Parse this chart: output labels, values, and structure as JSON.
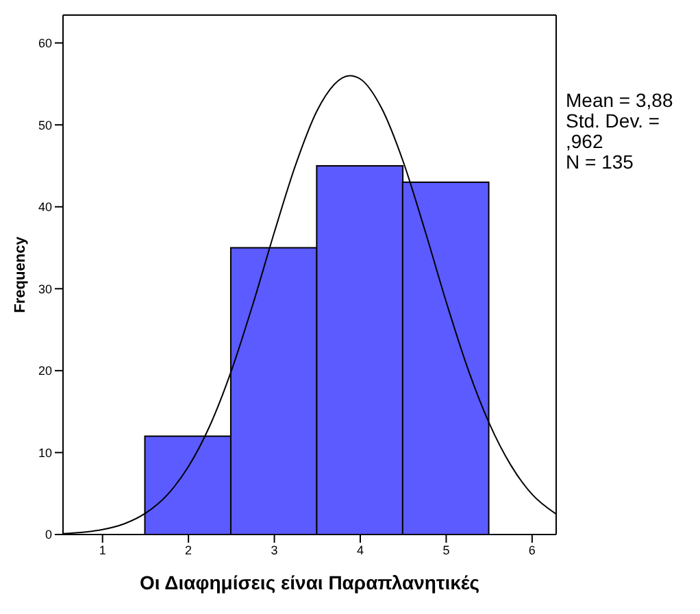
{
  "chart_data": {
    "type": "histogram",
    "xlabel": "Οι Διαφημίσεις είναι Παραπλανητικές",
    "ylabel": "Frequency",
    "annotations": [
      "Mean = 3,88",
      "Std. Dev. = ,962",
      "N = 135"
    ],
    "series": [
      {
        "bins": [
          1.5,
          2.5,
          3.5,
          4.5,
          5.5
        ],
        "values": [
          12,
          35,
          45,
          43
        ],
        "color": "#5b5bff"
      },
      {
        "type": "line",
        "color": "#000000",
        "x": [
          0.54,
          1.0,
          1.25,
          1.5,
          1.75,
          2.0,
          2.25,
          2.5,
          2.75,
          3.0,
          3.25,
          3.5,
          3.88,
          4.0,
          4.25,
          4.5,
          4.75,
          5.0,
          5.25,
          5.5,
          5.75,
          6.0,
          6.28
        ],
        "values": [
          0.1,
          0.6,
          1.3,
          2.6,
          4.8,
          8.3,
          13.3,
          20.0,
          28.1,
          36.9,
          45.2,
          51.8,
          56.0,
          55.6,
          52.0,
          45.5,
          37.2,
          28.4,
          20.3,
          13.6,
          8.5,
          4.9,
          2.5
        ]
      }
    ],
    "xlim": [
      0.54,
      6.28
    ],
    "xticks": [
      1,
      2,
      3,
      4,
      5,
      6
    ],
    "ylim": [
      0,
      63.4
    ],
    "yticks": [
      0,
      10,
      20,
      30,
      40,
      50,
      60
    ],
    "marker": "none"
  }
}
